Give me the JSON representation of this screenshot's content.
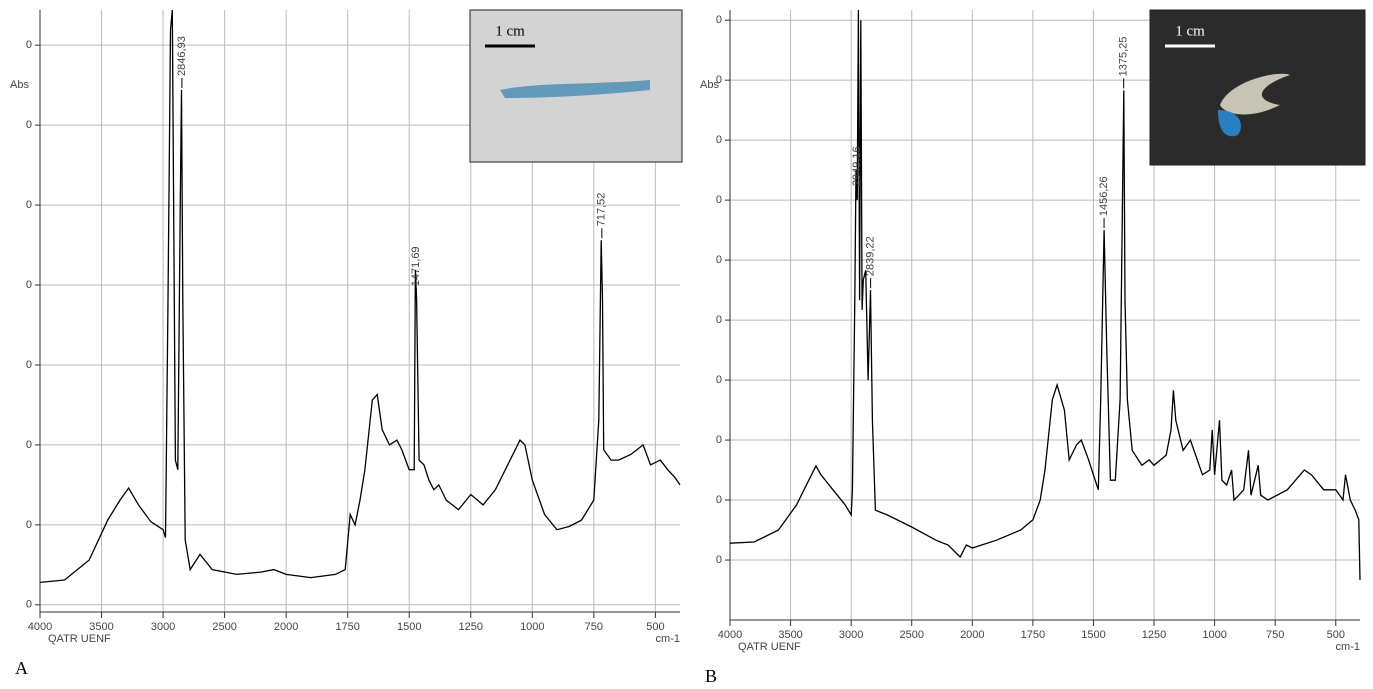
{
  "chart_data": [
    {
      "type": "line",
      "panel_label": "A",
      "ylabel": "Abs",
      "xlabel": "cm-1",
      "watermark": "QATR UENF",
      "inset_label": "1 cm",
      "color": "#000000",
      "grid": true,
      "xlim": [
        4000,
        400
      ],
      "xticks": [
        4000,
        3500,
        3000,
        2500,
        2000,
        1750,
        1500,
        1250,
        1000,
        750,
        500
      ],
      "ylim": [
        -0.09,
        7.44
      ],
      "yticks": [
        0,
        {
          "value": 1,
          "label": "0"
        },
        {
          "value": 2,
          "label": "0"
        },
        {
          "value": 3,
          "label": "0"
        },
        {
          "value": 4,
          "label": "0"
        },
        {
          "value": 5,
          "label": "0"
        },
        {
          "value": 6,
          "label": "0"
        },
        {
          "value": 7,
          "label": "0"
        }
      ],
      "annotations": [
        {
          "value": 2846.93,
          "label": "2846,93"
        },
        {
          "value": 1471.69,
          "label": "1471,69"
        },
        {
          "value": 717.52,
          "label": "717,52"
        }
      ],
      "x": [
        4000,
        3800,
        3600,
        3450,
        3350,
        3280,
        3200,
        3100,
        3000,
        2980,
        2960,
        2940,
        2925,
        2900,
        2880,
        2860,
        2850,
        2840,
        2820,
        2780,
        2700,
        2600,
        2400,
        2200,
        2100,
        2000,
        1900,
        1800,
        1760,
        1740,
        1720,
        1700,
        1680,
        1650,
        1630,
        1610,
        1580,
        1550,
        1530,
        1500,
        1480,
        1475,
        1470,
        1460,
        1440,
        1420,
        1400,
        1380,
        1350,
        1300,
        1250,
        1200,
        1150,
        1100,
        1050,
        1030,
        1000,
        950,
        900,
        850,
        800,
        750,
        730,
        720,
        715,
        710,
        680,
        650,
        600,
        550,
        520,
        480,
        450,
        420,
        400
      ],
      "values": [
        0.28,
        0.31,
        0.56,
        1.06,
        1.31,
        1.46,
        1.25,
        1.04,
        0.94,
        0.84,
        3.81,
        7.19,
        7.44,
        1.81,
        1.69,
        5.06,
        6.44,
        3.81,
        0.81,
        0.44,
        0.63,
        0.44,
        0.38,
        0.41,
        0.44,
        0.38,
        0.34,
        0.38,
        0.44,
        1.13,
        1.0,
        1.31,
        1.69,
        2.56,
        2.63,
        2.19,
        2.0,
        2.06,
        1.94,
        1.69,
        1.69,
        4.19,
        3.81,
        1.81,
        1.75,
        1.56,
        1.44,
        1.5,
        1.31,
        1.19,
        1.38,
        1.25,
        1.44,
        1.75,
        2.06,
        2.0,
        1.56,
        1.13,
        0.94,
        0.98,
        1.06,
        1.31,
        2.31,
        4.56,
        3.81,
        1.94,
        1.81,
        1.81,
        1.88,
        2.0,
        1.75,
        1.81,
        1.69,
        1.59,
        1.5
      ]
    },
    {
      "type": "line",
      "panel_label": "B",
      "ylabel": "Abs",
      "xlabel": "cm-1",
      "watermark": "QATR UENF",
      "inset_label": "1 cm",
      "color": "#000000",
      "grid": true,
      "xlim": [
        4000,
        400
      ],
      "xticks": [
        4000,
        3500,
        3000,
        2500,
        2000,
        1750,
        1500,
        1250,
        1000,
        750,
        500
      ],
      "ylim": [
        -1,
        9.17
      ],
      "yticks": [
        0,
        {
          "value": 1,
          "label": "0"
        },
        {
          "value": 2,
          "label": "0"
        },
        {
          "value": 3,
          "label": "0"
        },
        {
          "value": 4,
          "label": "0"
        },
        {
          "value": 5,
          "label": "0"
        },
        {
          "value": 6,
          "label": "0"
        },
        {
          "value": 7,
          "label": "0"
        },
        {
          "value": 8,
          "label": "0"
        },
        {
          "value": 9,
          "label": "0"
        }
      ],
      "annotations": [
        {
          "value": 2949.16,
          "label": "2949,16"
        },
        {
          "value": 2839.22,
          "label": "2839,22"
        },
        {
          "value": 1456.26,
          "label": "1456,26"
        },
        {
          "value": 1375.25,
          "label": "1375,25"
        }
      ],
      "x": [
        4000,
        3800,
        3600,
        3450,
        3350,
        3290,
        3250,
        3150,
        3050,
        3000,
        2990,
        2970,
        2960,
        2950,
        2940,
        2930,
        2920,
        2910,
        2900,
        2880,
        2860,
        2840,
        2825,
        2800,
        2700,
        2500,
        2300,
        2200,
        2100,
        2050,
        2000,
        1900,
        1800,
        1750,
        1720,
        1700,
        1670,
        1650,
        1620,
        1600,
        1570,
        1550,
        1520,
        1480,
        1470,
        1456,
        1445,
        1430,
        1410,
        1390,
        1380,
        1375,
        1370,
        1360,
        1340,
        1300,
        1270,
        1250,
        1200,
        1180,
        1170,
        1160,
        1130,
        1100,
        1050,
        1020,
        1010,
        1000,
        980,
        970,
        950,
        930,
        920,
        900,
        880,
        860,
        850,
        820,
        810,
        780,
        700,
        630,
        600,
        550,
        500,
        470,
        460,
        440,
        420,
        405,
        400
      ],
      "values": [
        0.28,
        0.3,
        0.5,
        0.92,
        1.33,
        1.57,
        1.42,
        1.17,
        0.92,
        0.75,
        1.17,
        4.33,
        6.5,
        6.0,
        9.17,
        4.33,
        9.0,
        4.17,
        4.67,
        4.83,
        3.0,
        4.5,
        2.33,
        0.83,
        0.75,
        0.55,
        0.33,
        0.25,
        0.05,
        0.25,
        0.2,
        0.33,
        0.5,
        0.67,
        1.0,
        1.5,
        2.67,
        2.92,
        2.5,
        1.67,
        1.92,
        2.0,
        1.67,
        1.17,
        2.67,
        5.5,
        3.5,
        1.33,
        1.33,
        2.67,
        6.0,
        7.83,
        4.33,
        2.67,
        1.83,
        1.58,
        1.67,
        1.58,
        1.75,
        2.17,
        2.83,
        2.33,
        1.83,
        2.0,
        1.42,
        1.5,
        2.17,
        1.42,
        2.33,
        1.33,
        1.25,
        1.5,
        1.0,
        1.08,
        1.17,
        1.83,
        1.08,
        1.58,
        1.08,
        1.0,
        1.17,
        1.5,
        1.42,
        1.17,
        1.17,
        1.0,
        1.42,
        1.0,
        0.83,
        0.67,
        -0.33
      ]
    }
  ]
}
